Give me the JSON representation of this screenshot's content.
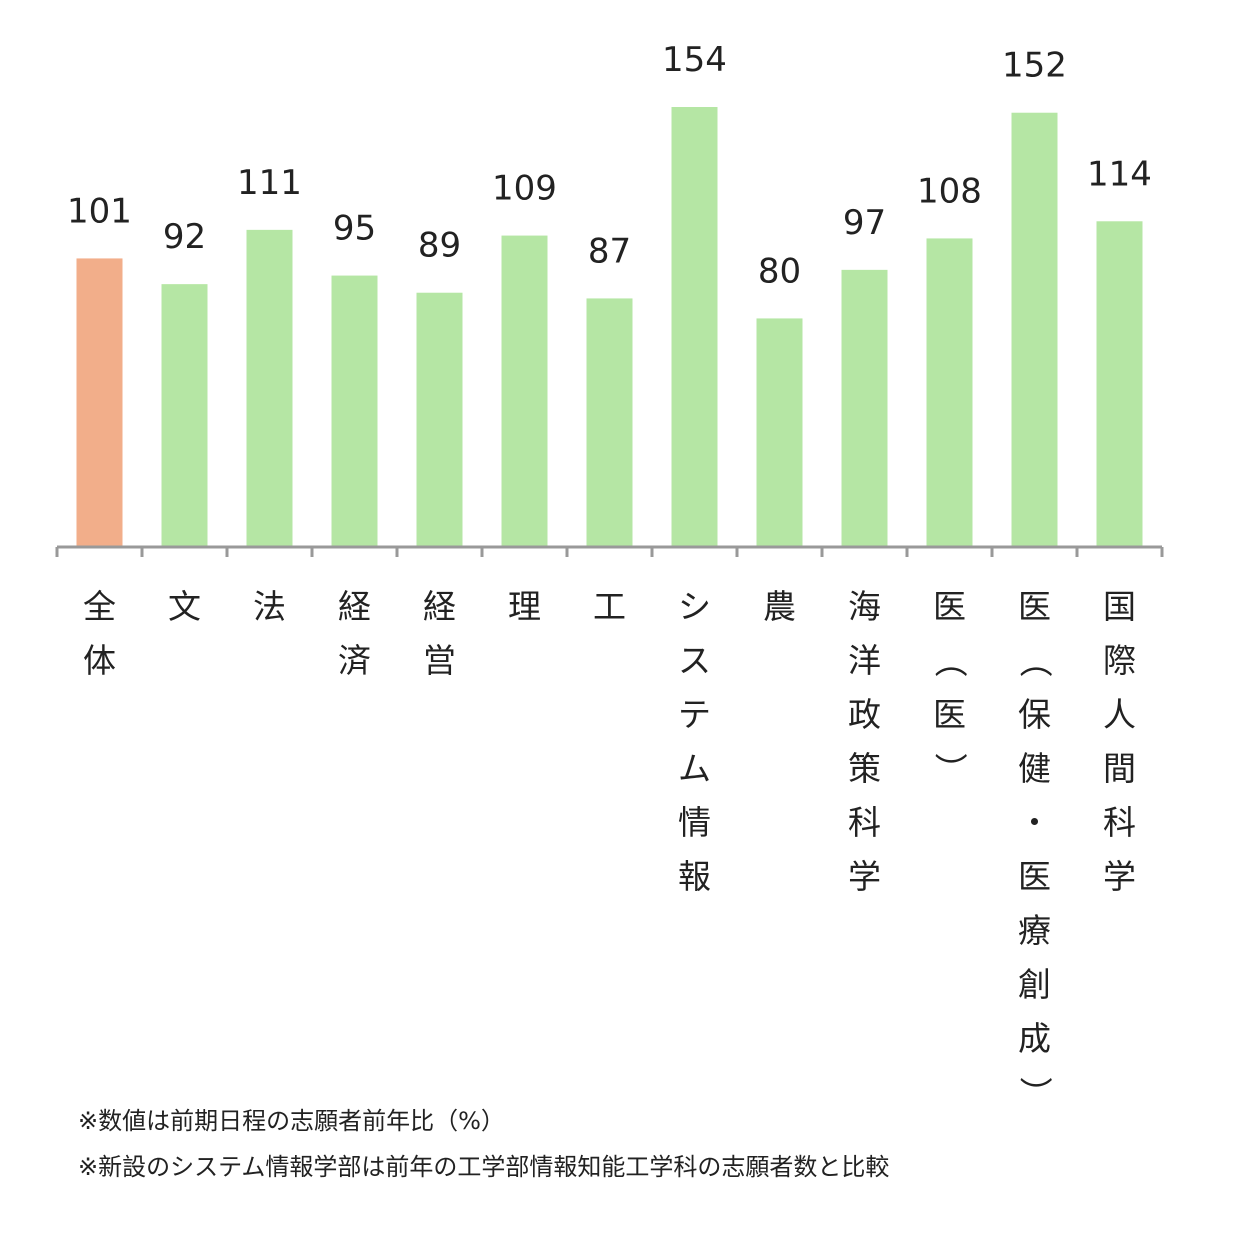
{
  "chart_data": {
    "type": "bar",
    "categories": [
      "全体",
      "文",
      "法",
      "経済",
      "経営",
      "理",
      "工",
      "システム情報",
      "農",
      "海洋政策科学",
      "医（医）",
      "医（保健・医療創成）",
      "国際人間科学"
    ],
    "values": [
      101,
      92,
      111,
      95,
      89,
      109,
      87,
      154,
      80,
      97,
      108,
      152,
      114
    ],
    "value_labels": [
      "101",
      "92",
      "111",
      "95",
      "89",
      "109",
      "87",
      "154",
      "80",
      "97",
      "108",
      "152",
      "114"
    ],
    "colors": {
      "highlight": "#f2ae8a",
      "default": "#b5e6a4",
      "axis": "#999999"
    },
    "highlight_index": 0,
    "title": "",
    "xlabel": "",
    "ylabel": "",
    "ylim": [
      0,
      154
    ],
    "grid": false,
    "legend": "none",
    "label_orientation": "vertical"
  },
  "notes": [
    "※数値は前期日程の志願者前年比（%）",
    "※新設のシステム情報学部は前年の工学部情報知能工学科の志願者数と比較"
  ]
}
